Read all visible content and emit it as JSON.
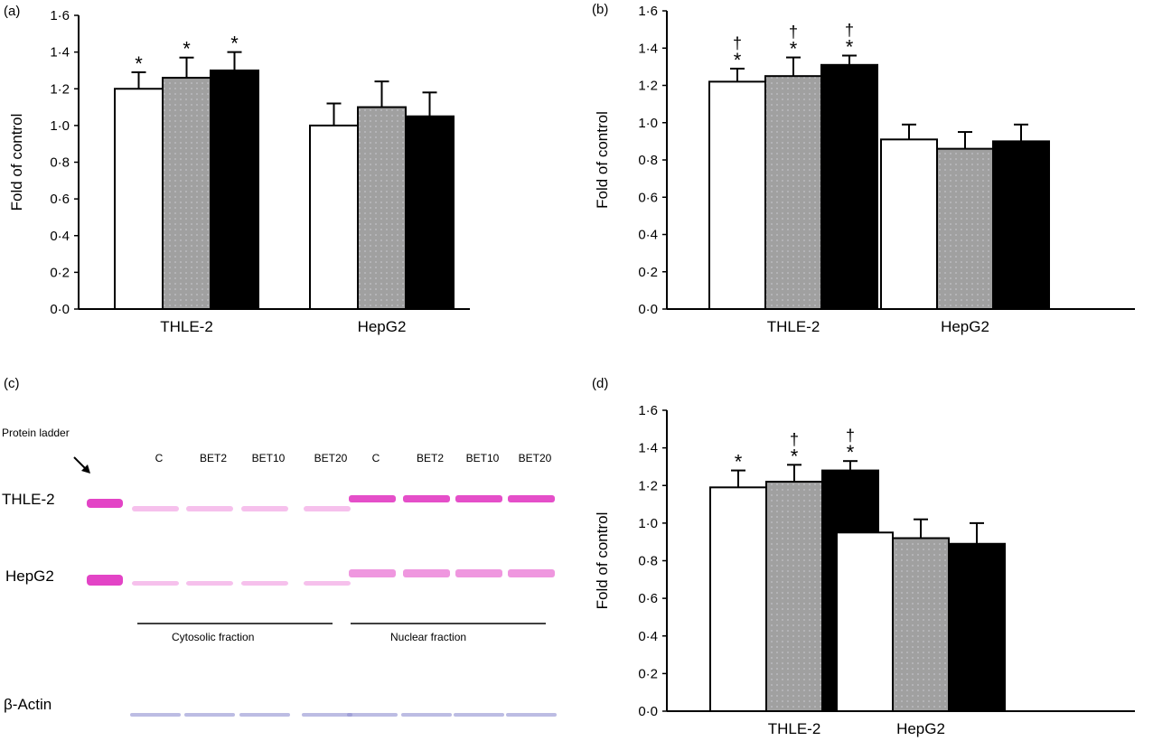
{
  "chart_data": [
    {
      "panel": "(a)",
      "type": "bar",
      "categories": [
        "THLE-2",
        "HepG2"
      ],
      "ylabel": "Fold of control",
      "ylim": [
        0,
        1.6
      ],
      "yticks": [
        "0·0",
        "0·2",
        "0·4",
        "0·6",
        "0·8",
        "1·0",
        "1·2",
        "1·4",
        "1·6"
      ],
      "series": [
        {
          "values": [
            1.2,
            1.0
          ],
          "error_upper": [
            1.29,
            1.12
          ],
          "fill": "#ffffff"
        },
        {
          "values": [
            1.26,
            1.1
          ],
          "error_upper": [
            1.37,
            1.24
          ],
          "fill": "#a0a0a0"
        },
        {
          "values": [
            1.3,
            1.05
          ],
          "error_upper": [
            1.4,
            1.18
          ],
          "fill": "#000000"
        }
      ],
      "annotations": [
        {
          "category": "THLE-2",
          "series": 0,
          "text": "*"
        },
        {
          "category": "THLE-2",
          "series": 1,
          "text": "*"
        },
        {
          "category": "THLE-2",
          "series": 2,
          "text": "*"
        }
      ],
      "grid": false
    },
    {
      "panel": "(b)",
      "type": "bar",
      "categories": [
        "THLE-2",
        "HepG2"
      ],
      "ylabel": "Fold of control",
      "ylim": [
        0,
        1.6
      ],
      "yticks": [
        "0·0",
        "0·2",
        "0·4",
        "0·6",
        "0·8",
        "1·0",
        "1·2",
        "1·4",
        "1·6"
      ],
      "series": [
        {
          "values": [
            1.22,
            0.91
          ],
          "error_upper": [
            1.29,
            0.99
          ],
          "fill": "#ffffff"
        },
        {
          "values": [
            1.25,
            0.86
          ],
          "error_upper": [
            1.35,
            0.95
          ],
          "fill": "#a0a0a0"
        },
        {
          "values": [
            1.31,
            0.9
          ],
          "error_upper": [
            1.36,
            0.99
          ],
          "fill": "#000000"
        }
      ],
      "annotations": [
        {
          "category": "THLE-2",
          "series": 0,
          "text": "*",
          "text2": "†"
        },
        {
          "category": "THLE-2",
          "series": 1,
          "text": "*",
          "text2": "†"
        },
        {
          "category": "THLE-2",
          "series": 2,
          "text": "*",
          "text2": "†"
        }
      ],
      "grid": false
    },
    {
      "panel": "(d)",
      "type": "bar",
      "categories": [
        "THLE-2",
        "HepG2"
      ],
      "ylabel": "Fold of control",
      "ylim": [
        0,
        1.6
      ],
      "yticks": [
        "0·0",
        "0·2",
        "0·4",
        "0·6",
        "0·8",
        "1·0",
        "1·2",
        "1·4",
        "1·6"
      ],
      "series": [
        {
          "values": [
            1.19,
            0.95
          ],
          "error_upper": [
            1.28,
            1.04
          ],
          "fill": "#ffffff"
        },
        {
          "values": [
            1.22,
            0.92
          ],
          "error_upper": [
            1.31,
            1.02
          ],
          "fill": "#a0a0a0"
        },
        {
          "values": [
            1.28,
            0.89
          ],
          "error_upper": [
            1.33,
            1.0
          ],
          "fill": "#000000"
        }
      ],
      "annotations": [
        {
          "category": "THLE-2",
          "series": 0,
          "text": "*"
        },
        {
          "category": "THLE-2",
          "series": 1,
          "text": "*",
          "text2": "†"
        },
        {
          "category": "THLE-2",
          "series": 2,
          "text": "*",
          "text2": "†"
        }
      ],
      "grid": false
    }
  ],
  "blot": {
    "panel": "(c)",
    "ladder_label": "Protein ladder",
    "lanes": [
      "C",
      "BET2",
      "BET10",
      "BET20",
      "C",
      "BET2",
      "BET10",
      "BET20"
    ],
    "rows": [
      "THLE-2",
      "HepG2",
      "β-Actin"
    ],
    "fractions": [
      "Cytosolic fraction",
      "Nuclear fraction"
    ],
    "band_color": "#e030c0",
    "actin_color": "#9090d0"
  }
}
